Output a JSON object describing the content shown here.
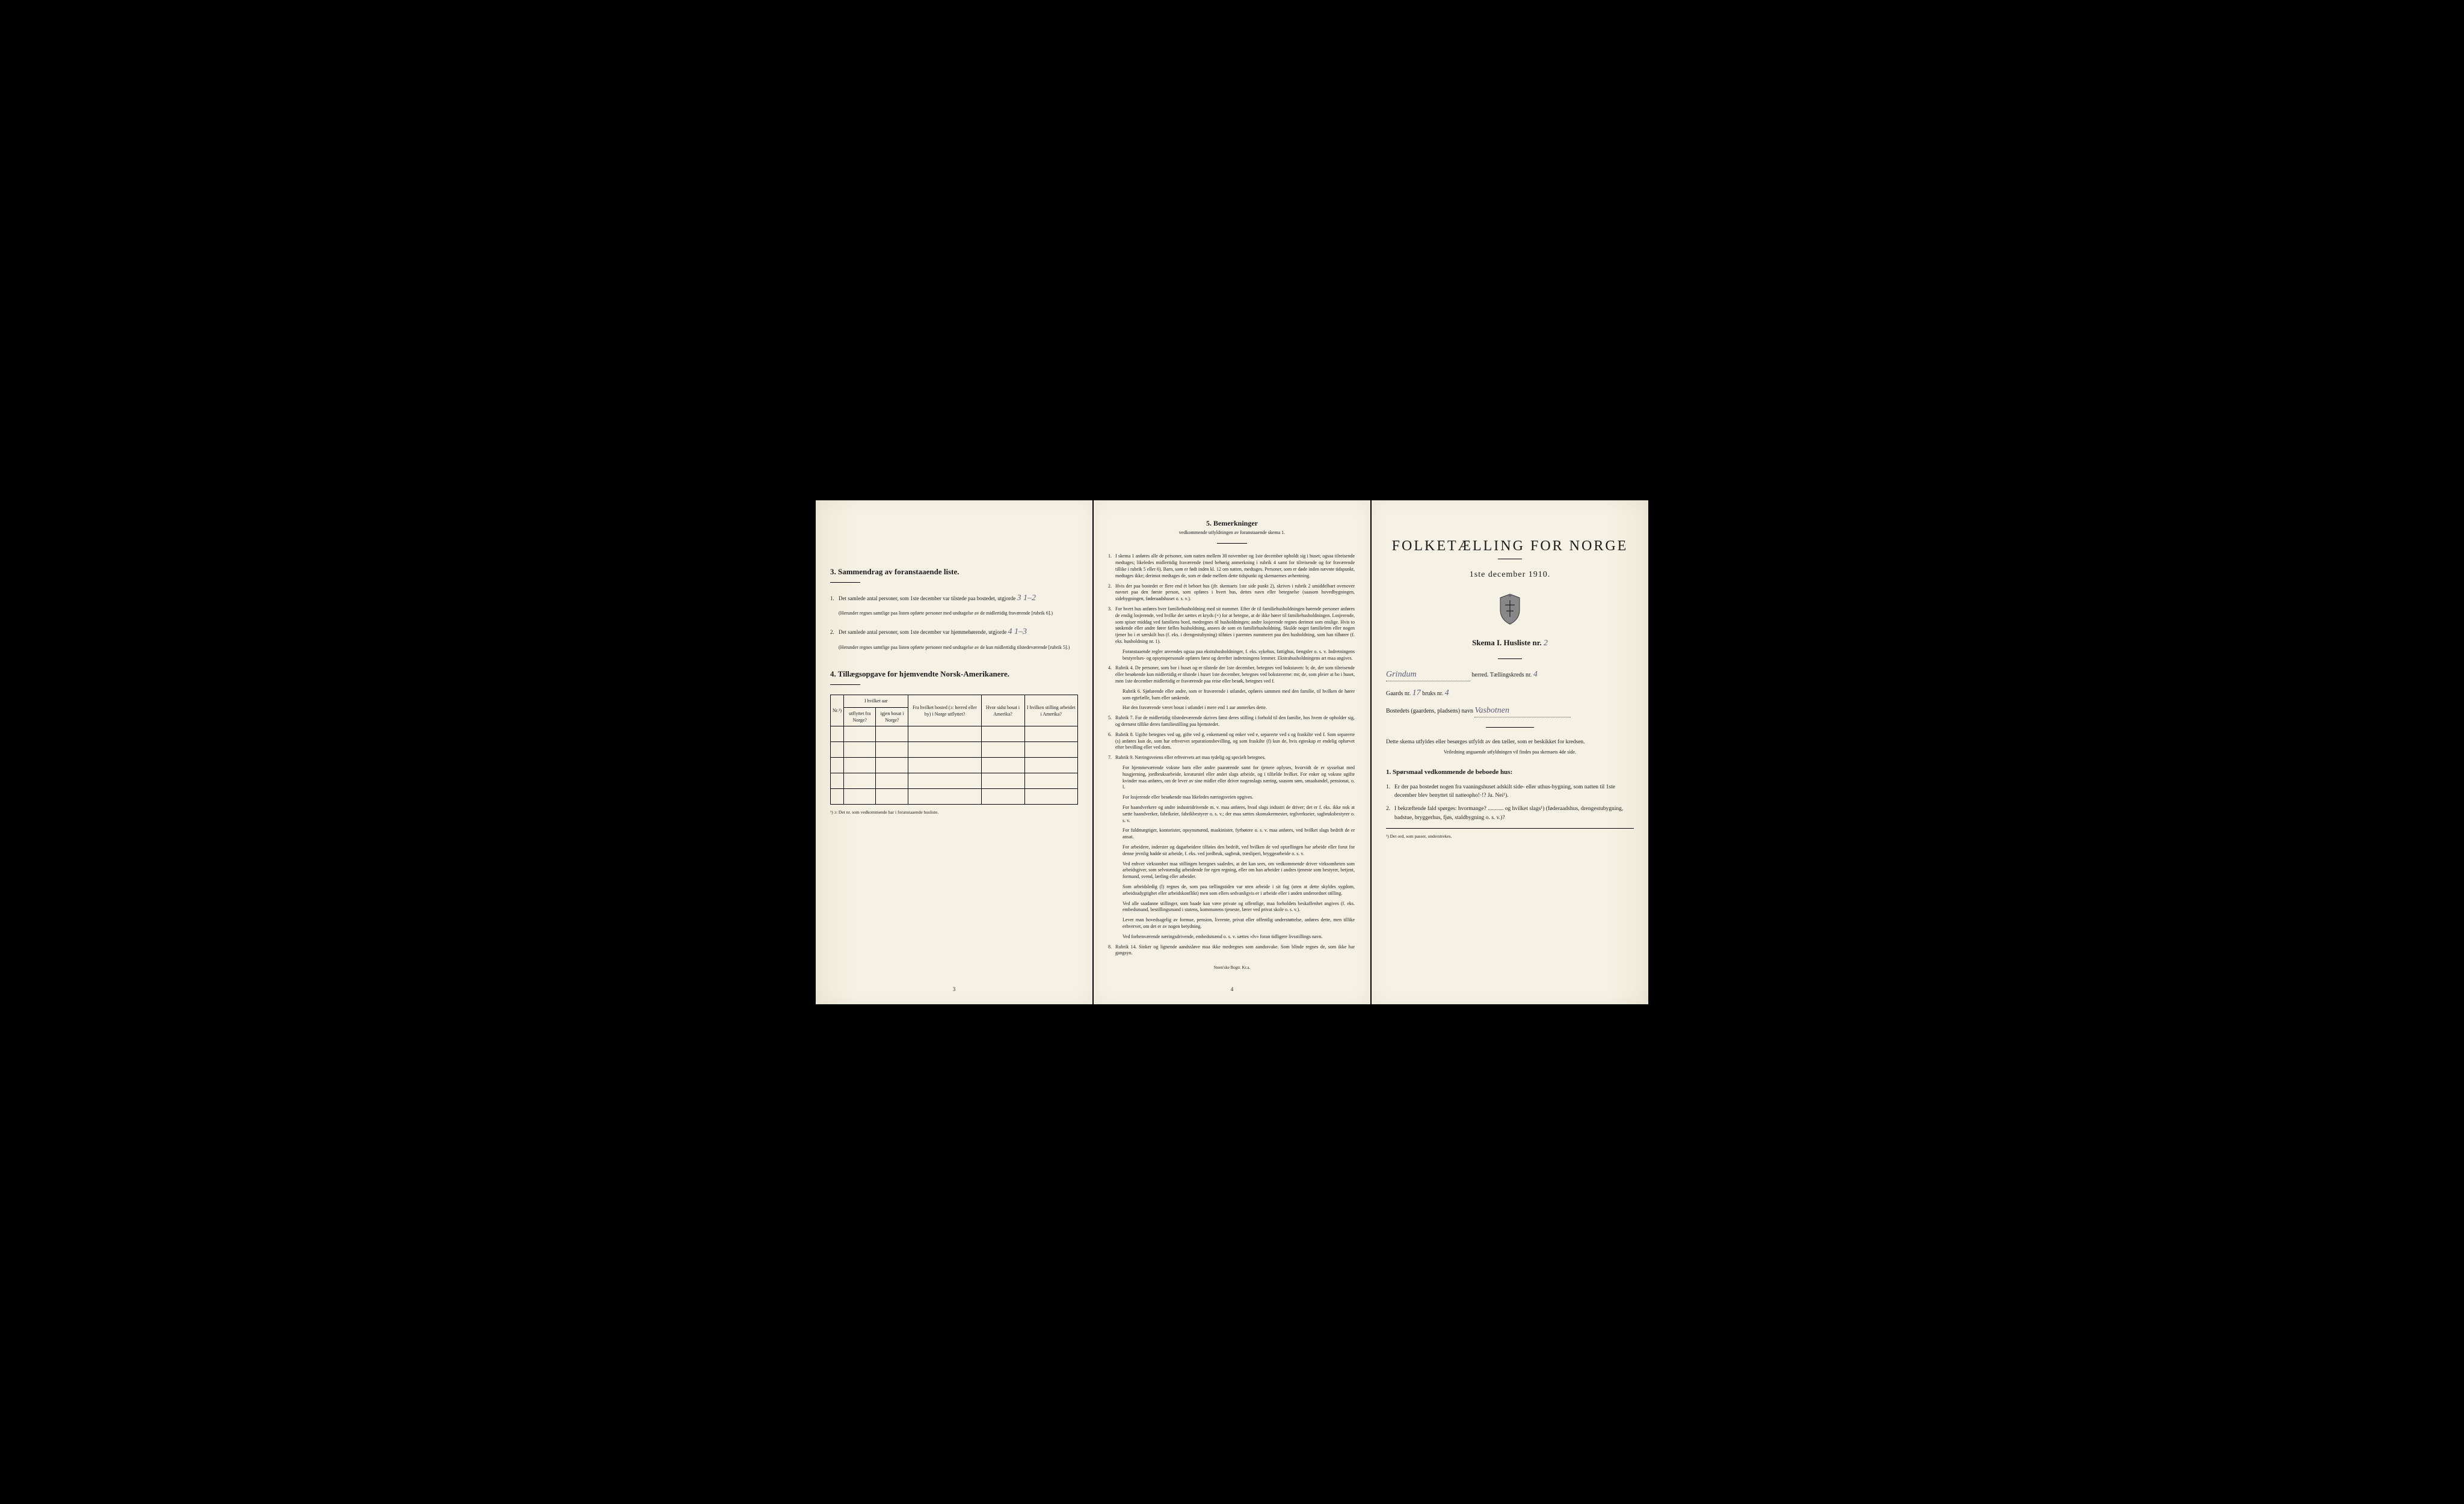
{
  "left": {
    "section3_title": "3.   Sammendrag av foranstaaende liste.",
    "item1": "Det samlede antal personer, som 1ste december var tilstede paa bostedet, utgjorde",
    "item1_fill": "3   1–2",
    "item1_note": "(Herunder regnes samtlige paa listen opførte personer med undtagelse av de midlertidig fraværende [rubrik 6].)",
    "item2": "Det samlede antal personer, som 1ste december var hjemmehørende, utgjorde",
    "item2_fill": "4   1–3",
    "item2_note": "(Herunder regnes samtlige paa listen opførte personer med undtagelse av de kun midlertidig tilstedeværende [rubrik 5].)",
    "section4_title": "4.  Tillægsopgave for hjemvendte Norsk-Amerikanere.",
    "table": {
      "headers": {
        "nr": "Nr.¹)",
        "col_a_top": "I hvilket aar",
        "col_a1": "utflyttet fra Norge?",
        "col_a2": "igjen bosat i Norge?",
        "col_b": "Fra hvilket bosted (ɔ: herred eller by) i Norge utflyttet?",
        "col_c": "Hvor sidst bosat i Amerika?",
        "col_d": "I hvilken stilling arbeidet i Amerika?"
      },
      "row_count": 5
    },
    "footnote": "¹) ɔ: Det nr. som vedkommende har i foranstaaende husliste.",
    "page_num": "3"
  },
  "middle": {
    "title": "5.   Bemerkninger",
    "subtitle": "vedkommende utfyldningen av foranstaaende skema 1.",
    "items": [
      "I skema 1 anføres alle de personer, som natten mellem 30 november og 1ste december opholdt sig i huset; ogsaa tilreisende medtages; likeledes midlertidig fraværende (med behørig anmerkning i rubrik 4 samt for tilreisende og for fraværende tillike i rubrik 5 eller 6). Barn, som er født inden kl. 12 om natten, medtages. Personer, som er døde inden nævnte tidspunkt, medtages ikke; derimot medtages de, som er døde mellem dette tidspunkt og skemaernes avhentning.",
      "Hvis der paa bostedet er flere end ét beboet hus (jfr. skemaets 1ste side punkt 2), skrives i rubrik 2 umiddelbart ovenover navnet paa den første person, som opføres i hvert hus, dettes navn eller betegnelse (saasom hovedbygningen, sidebygningen, føderaadshuset o. s. v.).",
      "For hvert hus anføres hver familiehusholdning med sit nummer. Efter de til familiehusholdningen hørende personer anføres de enslig losjerende, ved hvilke der sættes et kryds (×) for at betegne, at de ikke hører til familiehusholdningen. Losjerende, som spiser middag ved familiens bord, medregnes til husholdningen; andre losjerende regnes derimot som enslige. Hvis to søskende eller andre fører fælles husholdning, ansees de som en familiehusholdning. Skulde noget familielem eller nogen tjener bo i et særskilt hus (f. eks. i drengestubyning) tilføies i parentes nummeret paa den husholdning, som han tilhører (f. eks. husholdning nr. 1).",
      "Rubrik 4. De personer, som bor i huset og er tilstede der 1ste december, betegnes ved bokstaven: b; de, der som tilreisende eller besøkende kun midlertidig er tilstede i huset 1ste december, betegnes ved bokstaverne: mt; de, som pleier at bo i huset, men 1ste december midlertidig er fraværende paa reise eller besøk, betegnes ved f.",
      "Rubrik 7. For de midlertidig tilstedeværende skrives først deres stilling i forhold til den familie, hos hvem de opholder sig, og dernæst tillike deres familiestilling paa hjemstedet.",
      "Rubrik 8. Ugifte betegnes ved ug, gifte ved g, enkemænd og enker ved e, separerte ved s og fraskilte ved f. Som separerte (s) anføres kun de, som har erhvervet separationsbevilling, og som fraskilte (f) kun de, hvis egteskap er endelig ophævet efter bevilling eller ved dom.",
      "Rubrik 9. Næringsveiens eller erhvervets art maa tydelig og specielt betegnes.",
      "Rubrik 14. Sinker og lignende aandssløve maa ikke medregnes som aandssvake. Som blinde regnes de, som ikke har gangsyn."
    ],
    "sub3": "Foranstaaende regler anvendes ogsaa paa ekstrahusholdninger, f. eks. sykehus, fattighus, fængsler o. s. v. Indretningens bestyrelses- og opsynspersonale opføres først og derefter indretningens lemmer. Ekstrahusholdningens art maa angives.",
    "sub4a": "Rubrik 6. Sjøfarende eller andre, som er fraværende i utlandet, opføres sammen med den familie, til hvilken de hører som egtefælle, barn eller søskende.",
    "sub4b": "Har den fraværende været bosat i utlandet i mere end 1 aar anmerkes dette.",
    "sub7a": "For hjemmeværende voksne barn eller andre paarørende samt for tjenere oplyses, hvorvidt de er sysselsat med husgjerning, jordbruksarbeide, kreaturstel eller andet slags arbeide, og i tilfælde hvilket. For enker og voksne ugifte kvinder maa anføres, om de lever av sine midler eller driver nogenslags næring, saasom søm, smaahandel, pensionat, o. l.",
    "sub7b": "For losjerende eller besøkende maa likeledes næringsveien opgives.",
    "sub7c": "For haandverkere og andre industridrivende m. v. maa anføres, hvad slags industri de driver; det er f. eks. ikke nok at sætte haandverker, fabrikeier, fabrikbestyrer o. s. v.; der maa sættes skomakermester, teglverkseier, sagbruksbestyrer o. s. v.",
    "sub7d": "For fuldmægtiger, kontorister, opsynsmænd, maskinister, fyrbøtere o. s. v. maa anføres, ved hvilket slags bedrift de er ansat.",
    "sub7e": "For arbeidere, inderster og dagarbeidere tilføies den bedrift, ved hvilken de ved optællingen har arbeide eller forut for denne jevnlig hadde sit arbeide, f. eks. ved jordbruk, sagbruk, træsliperi, bryggearbeide o. s. v.",
    "sub7f": "Ved enhver virksomhet maa stillingen betegnes saaledes, at det kan sees, om vedkommende driver virksomheten som arbeidsgiver, som selvstændig arbeidende for egen regning, eller om han arbeider i andres tjeneste som bestyrer, betjent, formand, svend, lærling eller arbeider.",
    "sub7g": "Som arbeidsledig (l) regnes de, som paa tællingstiden var uten arbeide i sit fag (uten at dette skyldes sygdom, arbeidsudygtighet eller arbeidskonflikt) men som ellers sedvanligvis er i arbeide eller i anden underordnet stilling.",
    "sub7h": "Ved alle saadanne stillinger, som baade kan være private og offentlige, maa forholdets beskaffenhet angives (f. eks. embedsmand, bestillingsmand i statens, kommunens tjeneste, lærer ved privat skole o. s. v.).",
    "sub7i": "Lever man hovedsagelig av formue, pension, livrente, privat eller offentlig understøttelse, anføres dette, men tillike erhvervet, om det er av nogen betydning.",
    "sub7j": "Ved forhenværende næringsdrivende, embedsmænd o. s. v. sættes «fv» foran tidligere livsstillings navn.",
    "page_num": "4",
    "printer": "Steen'ske Bogtr.  Kr.a."
  },
  "right": {
    "main_title": "FOLKETÆLLING FOR NORGE",
    "main_sub": "1ste december 1910.",
    "skema_label": "Skema I.   Husliste nr.",
    "skema_nr": "2",
    "herred_fill": "Grindum",
    "herred_label": "herred.  Tællingskreds nr.",
    "kreds_nr": "4",
    "gaards_label": "Gaards nr.",
    "gaards_nr": "17",
    "bruks_label": "bruks nr.",
    "bruks_nr": "4",
    "bosted_label": "Bostedets (gaardens, pladsens) navn",
    "bosted_fill": "Vasbotnen",
    "instr1": "Dette skema utfyldes eller besørges utfyldt av den tæller, som er beskikket for kredsen.",
    "instr2": "Veiledning angaaende utfyldningen vil findes paa skemaets 4de side.",
    "q_title": "1. Spørsmaal vedkommende de beboede hus:",
    "q1": "Er der paa bostedet nogen fra vaaningshuset adskilt side- eller uthus-bygning, som natten til 1ste december blev benyttet til natteopho!·!?   Ja.   Nei¹).",
    "q2": "I bekræftende fald spørges: hvormange? ........... og hvilket slags¹) (føderaadshus, drengestubygning, badstue, bryggerhus, fjøs, staldbygning o. s. v.)?",
    "footnote": "¹) Det ord, som passer, understrekes."
  }
}
